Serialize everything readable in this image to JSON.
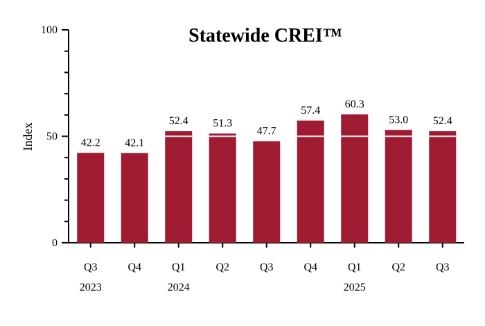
{
  "chart_data": {
    "type": "bar",
    "title": "Statewide CREI™",
    "ylabel": "Index",
    "xlabel": "",
    "ylim": [
      0,
      100
    ],
    "y_ticks": [
      0,
      50,
      100
    ],
    "categories": [
      "Q3",
      "Q4",
      "Q1",
      "Q2",
      "Q3",
      "Q4",
      "Q1",
      "Q2",
      "Q3"
    ],
    "year_labels": [
      "2023",
      "",
      "2024",
      "",
      "",
      "",
      "2025",
      "",
      ""
    ],
    "values": [
      42.2,
      42.1,
      52.4,
      51.3,
      47.7,
      57.4,
      60.3,
      53.0,
      52.4
    ],
    "value_labels": [
      "42.2",
      "42.1",
      "52.4",
      "51.3",
      "47.7",
      "57.4",
      "60.3",
      "53.0",
      "52.4"
    ],
    "reference_line": 50,
    "bar_color": "#9e1b32",
    "reference_line_color": "#ffffff",
    "grid": false,
    "legend": "none"
  }
}
